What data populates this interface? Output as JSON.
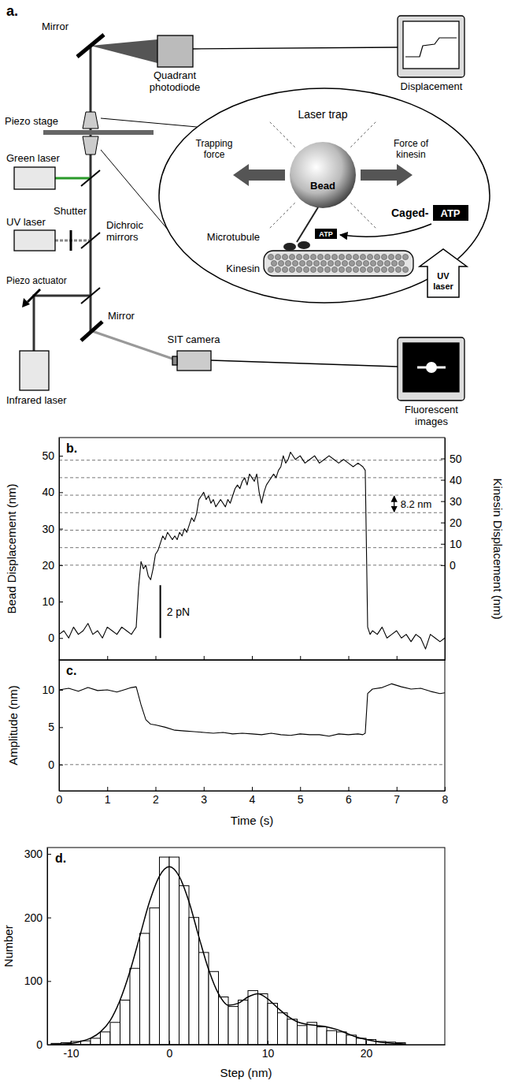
{
  "diagram": {
    "panel_label": "a.",
    "labels": [
      "Mirror",
      "Quadrant photodiode",
      "Displacement",
      "Piezo stage",
      "Green laser",
      "Shutter",
      "UV laser",
      "Dichroic mirrors",
      "Piezo actuator",
      "Infrared laser",
      "Mirror",
      "SIT camera",
      "Fluorescent images",
      "Laser trap",
      "Trapping force",
      "Force of kinesin",
      "Bead",
      "Microtubule",
      "Kinesin",
      "ATP",
      "Caged-",
      "ATP",
      "UV laser"
    ]
  },
  "chart_data": [
    {
      "type": "line",
      "panel_label": "b.",
      "ylabel": "Bead Displacement (nm)",
      "y2label": "Kinesin Displacement (nm)",
      "x": [
        0,
        0.1,
        0.2,
        0.3,
        0.4,
        0.5,
        0.6,
        0.7,
        0.8,
        0.9,
        1.0,
        1.1,
        1.2,
        1.3,
        1.4,
        1.5,
        1.55,
        1.6,
        1.65,
        1.7,
        1.75,
        1.8,
        1.85,
        1.9,
        1.95,
        2.0,
        2.05,
        2.1,
        2.15,
        2.2,
        2.25,
        2.3,
        2.35,
        2.4,
        2.45,
        2.5,
        2.55,
        2.6,
        2.65,
        2.7,
        2.75,
        2.8,
        2.85,
        2.9,
        2.95,
        3.0,
        3.05,
        3.1,
        3.15,
        3.2,
        3.25,
        3.3,
        3.35,
        3.4,
        3.45,
        3.5,
        3.55,
        3.6,
        3.65,
        3.7,
        3.75,
        3.8,
        3.85,
        3.9,
        3.95,
        4.0,
        4.05,
        4.1,
        4.15,
        4.2,
        4.25,
        4.3,
        4.35,
        4.4,
        4.45,
        4.5,
        4.55,
        4.6,
        4.65,
        4.7,
        4.75,
        4.8,
        4.9,
        5.0,
        5.1,
        5.2,
        5.3,
        5.4,
        5.5,
        5.6,
        5.7,
        5.8,
        5.9,
        6.0,
        6.1,
        6.2,
        6.3,
        6.35,
        6.4,
        6.45,
        6.5,
        6.6,
        6.7,
        6.8,
        6.9,
        7.0,
        7.1,
        7.2,
        7.3,
        7.4,
        7.5,
        7.6,
        7.7,
        7.8,
        7.9,
        8.0
      ],
      "series": [
        {
          "color": "#000000",
          "values": [
            1,
            2,
            0,
            3,
            1,
            2,
            4,
            1,
            2,
            0,
            3,
            2,
            1,
            3,
            2,
            1,
            2,
            3,
            14,
            21,
            19,
            20,
            17,
            16,
            19,
            23,
            24,
            26,
            28,
            27,
            29,
            28,
            27,
            28,
            27,
            29,
            28,
            30,
            29,
            31,
            33,
            32,
            34,
            38,
            39,
            40,
            38,
            39,
            37,
            38,
            36,
            37,
            38,
            37,
            36,
            38,
            37,
            39,
            41,
            42,
            41,
            43,
            44,
            42,
            45,
            44,
            43,
            45,
            40,
            37,
            40,
            42,
            43,
            44,
            45,
            44,
            46,
            47,
            50,
            48,
            49,
            51,
            49,
            50,
            48,
            49,
            50,
            48,
            49,
            50,
            49,
            48,
            49,
            48,
            47,
            48,
            47,
            46,
            3,
            1,
            2,
            1,
            3,
            0,
            1,
            2,
            0,
            1,
            -1,
            1,
            0,
            -3,
            1,
            0,
            -1,
            0
          ]
        }
      ],
      "xlim": [
        0,
        8
      ],
      "xticks": [
        0,
        1,
        2,
        3,
        4,
        5,
        6,
        7,
        8
      ],
      "ylim": [
        -6,
        55
      ],
      "yticks": [
        0,
        10,
        20,
        30,
        40,
        50
      ],
      "y2lim": [
        -44.4,
        59.8
      ],
      "y2ticks": [
        0,
        10,
        20,
        30,
        40,
        50
      ],
      "tick_labels": "y",
      "reference_lines": {
        "axis": "y2",
        "values": [
          0,
          8.2,
          16.4,
          24.6,
          32.8,
          41,
          49.2
        ]
      },
      "scale_bar": {
        "label": "2 pN",
        "x": 2.1,
        "y0": 0,
        "y1": 14.5
      },
      "annotations": [
        {
          "text": "8.2 nm",
          "x": 6.95,
          "y0": 24.6,
          "y1": 32.8,
          "axis": "y2"
        }
      ]
    },
    {
      "type": "line",
      "panel_label": "c.",
      "xlabel": "Time (s)",
      "ylabel": "Amplitude (nm)",
      "x": [
        0,
        0.2,
        0.4,
        0.6,
        0.8,
        1.0,
        1.2,
        1.4,
        1.5,
        1.6,
        1.7,
        1.8,
        1.9,
        2.0,
        2.2,
        2.4,
        2.6,
        2.8,
        3.0,
        3.2,
        3.4,
        3.6,
        3.8,
        4.0,
        4.2,
        4.4,
        4.6,
        4.8,
        5.0,
        5.2,
        5.4,
        5.6,
        5.8,
        6.0,
        6.2,
        6.3,
        6.35,
        6.4,
        6.5,
        6.7,
        6.9,
        7.1,
        7.3,
        7.5,
        7.7,
        7.9,
        8.0
      ],
      "series": [
        {
          "color": "#000000",
          "values": [
            10,
            10.2,
            9.8,
            10.3,
            9.9,
            10,
            9.7,
            10.1,
            10.3,
            10.4,
            8,
            6,
            5.4,
            5.3,
            5,
            4.6,
            4.5,
            4.4,
            4.3,
            4.2,
            4.3,
            4.1,
            4.2,
            4.1,
            4.0,
            4.2,
            4.0,
            3.9,
            4.1,
            4.0,
            4.0,
            3.8,
            4.1,
            4.0,
            4.1,
            4.0,
            4.2,
            9.5,
            10.1,
            10.3,
            10.8,
            10.4,
            10.1,
            10.2,
            9.8,
            9.5,
            9.6
          ]
        }
      ],
      "xlim": [
        0,
        8
      ],
      "xticks": [
        0,
        1,
        2,
        3,
        4,
        5,
        6,
        7,
        8
      ],
      "ylim": [
        -3.5,
        14
      ],
      "yticks": [
        0,
        5,
        10
      ],
      "reference_lines": {
        "axis": "y",
        "values": [
          0
        ]
      }
    },
    {
      "type": "histogram",
      "panel_label": "d.",
      "xlabel": "Step (nm)",
      "ylabel": "Number",
      "bins": [
        -12,
        -11,
        -10,
        -9,
        -8,
        -7,
        -6,
        -5,
        -4,
        -3,
        -2,
        -1,
        0,
        1,
        2,
        3,
        4,
        5,
        6,
        7,
        8,
        9,
        10,
        11,
        12,
        13,
        14,
        15,
        16,
        17,
        18,
        19,
        20,
        21,
        22,
        23,
        24
      ],
      "values": [
        2,
        3,
        5,
        6,
        10,
        20,
        35,
        70,
        120,
        175,
        215,
        295,
        295,
        250,
        200,
        145,
        115,
        75,
        60,
        70,
        85,
        80,
        65,
        50,
        40,
        30,
        35,
        28,
        22,
        20,
        15,
        10,
        8,
        5,
        4,
        3
      ],
      "color": "#ffffff",
      "xlim": [
        -12.4,
        28
      ],
      "xticks": [
        -10,
        0,
        10,
        20
      ],
      "ylim": [
        0,
        310
      ],
      "yticks": [
        0,
        100,
        200,
        300
      ],
      "fit": {
        "color": "#000000",
        "x": [
          -12,
          -11,
          -10,
          -9,
          -8,
          -7,
          -6,
          -5,
          -4,
          -3,
          -2,
          -1,
          0,
          1,
          2,
          3,
          4,
          5,
          6,
          7,
          8,
          9,
          10,
          11,
          12,
          13,
          14,
          15,
          16,
          17,
          18,
          19,
          20,
          21,
          22,
          23,
          24
        ],
        "values": [
          0,
          1,
          2,
          5,
          10,
          20,
          38,
          70,
          115,
          170,
          225,
          265,
          280,
          265,
          225,
          170,
          118,
          80,
          62,
          65,
          75,
          80,
          72,
          58,
          45,
          36,
          32,
          30,
          28,
          24,
          18,
          12,
          8,
          5,
          3,
          2,
          1
        ]
      }
    }
  ]
}
